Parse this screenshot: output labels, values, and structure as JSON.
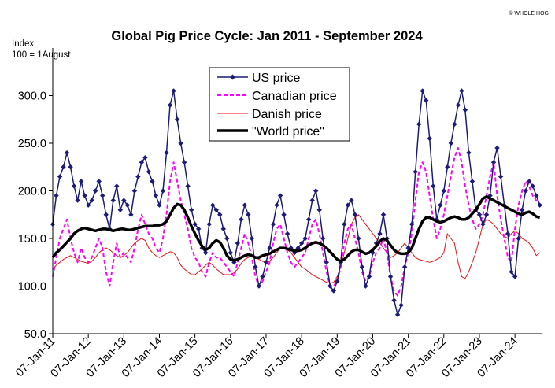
{
  "chart_data": {
    "type": "line",
    "title": "Global Pig Price Cycle: Jan 2011 - September 2024",
    "ylabel_line1": "Index",
    "ylabel_line2": "100 = 1August",
    "copyright": "© WHOLE HOG",
    "ylim": [
      50,
      350
    ],
    "yticks": [
      50,
      100,
      150,
      200,
      250,
      300
    ],
    "ytick_labels": [
      "50.0",
      "100.0",
      "150.0",
      "200.0",
      "250.0",
      "300.0"
    ],
    "xlim": [
      2011.0,
      2024.75
    ],
    "xticks": [
      2011,
      2012,
      2013,
      2014,
      2015,
      2016,
      2017,
      2018,
      2019,
      2020,
      2021,
      2022,
      2023,
      2024
    ],
    "xtick_labels": [
      "07-Jan-11",
      "07-Jan-12",
      "07-Jan-13",
      "07-Jan-14",
      "07-Jan-15",
      "07-Jan-16",
      "07-Jan-17",
      "07-Jan-18",
      "07-Jan-19",
      "07-Jan-20",
      "07-Jan-21",
      "07-Jan-22",
      "07-Jan-23",
      "07-Jan-24"
    ],
    "grid": false,
    "legend_position": "top-center",
    "series": [
      {
        "name": "US price",
        "color": "#1c1c78",
        "style": "solid-diamond",
        "x": [
          2011.0,
          2011.1,
          2011.2,
          2011.3,
          2011.4,
          2011.5,
          2011.6,
          2011.7,
          2011.8,
          2011.9,
          2012.0,
          2012.1,
          2012.2,
          2012.3,
          2012.4,
          2012.5,
          2012.6,
          2012.7,
          2012.8,
          2012.9,
          2013.0,
          2013.1,
          2013.2,
          2013.3,
          2013.4,
          2013.5,
          2013.6,
          2013.7,
          2013.8,
          2013.9,
          2014.0,
          2014.1,
          2014.2,
          2014.3,
          2014.4,
          2014.5,
          2014.6,
          2014.7,
          2014.8,
          2014.9,
          2015.0,
          2015.1,
          2015.2,
          2015.3,
          2015.4,
          2015.5,
          2015.6,
          2015.7,
          2015.8,
          2015.9,
          2016.0,
          2016.1,
          2016.2,
          2016.3,
          2016.4,
          2016.5,
          2016.6,
          2016.7,
          2016.8,
          2016.9,
          2017.0,
          2017.1,
          2017.2,
          2017.3,
          2017.4,
          2017.5,
          2017.6,
          2017.7,
          2017.8,
          2017.9,
          2018.0,
          2018.1,
          2018.2,
          2018.3,
          2018.4,
          2018.5,
          2018.6,
          2018.7,
          2018.8,
          2018.9,
          2019.0,
          2019.1,
          2019.2,
          2019.3,
          2019.4,
          2019.5,
          2019.6,
          2019.7,
          2019.8,
          2019.9,
          2020.0,
          2020.1,
          2020.2,
          2020.3,
          2020.4,
          2020.5,
          2020.6,
          2020.7,
          2020.8,
          2020.9,
          2021.0,
          2021.1,
          2021.2,
          2021.3,
          2021.4,
          2021.5,
          2021.6,
          2021.7,
          2021.8,
          2021.9,
          2022.0,
          2022.1,
          2022.2,
          2022.3,
          2022.4,
          2022.5,
          2022.6,
          2022.7,
          2022.8,
          2022.9,
          2023.0,
          2023.1,
          2023.2,
          2023.3,
          2023.4,
          2023.5,
          2023.6,
          2023.7,
          2023.8,
          2023.9,
          2024.0,
          2024.1,
          2024.2,
          2024.3,
          2024.4,
          2024.5,
          2024.6,
          2024.7
        ],
        "values": [
          165,
          195,
          215,
          225,
          240,
          225,
          205,
          190,
          210,
          195,
          185,
          190,
          200,
          210,
          195,
          175,
          160,
          190,
          205,
          180,
          190,
          185,
          175,
          200,
          215,
          230,
          235,
          220,
          210,
          195,
          185,
          200,
          240,
          290,
          305,
          275,
          250,
          230,
          205,
          180,
          165,
          160,
          140,
          135,
          165,
          185,
          180,
          175,
          160,
          150,
          135,
          125,
          145,
          170,
          185,
          175,
          150,
          120,
          100,
          110,
          125,
          140,
          165,
          185,
          195,
          175,
          155,
          140,
          135,
          140,
          145,
          150,
          170,
          190,
          200,
          180,
          150,
          125,
          100,
          95,
          105,
          125,
          165,
          185,
          190,
          175,
          150,
          120,
          100,
          110,
          135,
          145,
          155,
          175,
          150,
          110,
          85,
          70,
          80,
          120,
          140,
          165,
          220,
          270,
          305,
          295,
          255,
          205,
          170,
          185,
          200,
          225,
          250,
          270,
          290,
          305,
          285,
          240,
          210,
          180,
          175,
          165,
          175,
          195,
          230,
          245,
          215,
          185,
          155,
          115,
          110,
          150,
          180,
          200,
          210,
          205,
          195,
          185
        ]
      },
      {
        "name": "Canadian price",
        "color": "#ff00ff",
        "style": "dashed",
        "x": [
          2011.0,
          2011.1,
          2011.2,
          2011.3,
          2011.4,
          2011.5,
          2011.6,
          2011.7,
          2011.8,
          2011.9,
          2012.0,
          2012.1,
          2012.2,
          2012.3,
          2012.4,
          2012.5,
          2012.6,
          2012.7,
          2012.8,
          2012.9,
          2013.0,
          2013.1,
          2013.2,
          2013.3,
          2013.4,
          2013.5,
          2013.6,
          2013.7,
          2013.8,
          2013.9,
          2014.0,
          2014.1,
          2014.2,
          2014.3,
          2014.4,
          2014.5,
          2014.6,
          2014.7,
          2014.8,
          2014.9,
          2015.0,
          2015.1,
          2015.2,
          2015.3,
          2015.4,
          2015.5,
          2015.6,
          2015.7,
          2015.8,
          2015.9,
          2016.0,
          2016.1,
          2016.2,
          2016.3,
          2016.4,
          2016.5,
          2016.6,
          2016.7,
          2016.8,
          2016.9,
          2017.0,
          2017.1,
          2017.2,
          2017.3,
          2017.4,
          2017.5,
          2017.6,
          2017.7,
          2017.8,
          2017.9,
          2018.0,
          2018.1,
          2018.2,
          2018.3,
          2018.4,
          2018.5,
          2018.6,
          2018.7,
          2018.8,
          2018.9,
          2019.0,
          2019.1,
          2019.2,
          2019.3,
          2019.4,
          2019.5,
          2019.6,
          2019.7,
          2019.8,
          2019.9,
          2020.0,
          2020.1,
          2020.2,
          2020.3,
          2020.4,
          2020.5,
          2020.6,
          2020.7,
          2020.8,
          2020.9,
          2021.0,
          2021.1,
          2021.2,
          2021.3,
          2021.4,
          2021.5,
          2021.6,
          2021.7,
          2021.8,
          2021.9,
          2022.0,
          2022.1,
          2022.2,
          2022.3,
          2022.4,
          2022.5,
          2022.6,
          2022.7,
          2022.8,
          2022.9,
          2023.0,
          2023.1,
          2023.2,
          2023.3,
          2023.4,
          2023.5,
          2023.6,
          2023.7,
          2023.8,
          2023.9,
          2024.0,
          2024.1,
          2024.2,
          2024.3,
          2024.4,
          2024.5,
          2024.6,
          2024.7
        ],
        "values": [
          110,
          130,
          150,
          160,
          170,
          150,
          135,
          125,
          140,
          130,
          125,
          130,
          140,
          150,
          140,
          115,
          100,
          125,
          145,
          130,
          135,
          130,
          125,
          140,
          160,
          175,
          165,
          155,
          150,
          140,
          135,
          150,
          175,
          210,
          230,
          210,
          190,
          175,
          160,
          140,
          130,
          125,
          115,
          110,
          125,
          135,
          130,
          130,
          125,
          120,
          115,
          110,
          125,
          140,
          155,
          145,
          130,
          110,
          100,
          105,
          115,
          125,
          145,
          160,
          165,
          150,
          135,
          125,
          120,
          125,
          130,
          135,
          150,
          165,
          170,
          155,
          135,
          115,
          100,
          100,
          105,
          120,
          145,
          160,
          165,
          150,
          135,
          115,
          105,
          110,
          125,
          135,
          140,
          150,
          135,
          110,
          95,
          90,
          100,
          120,
          135,
          155,
          190,
          220,
          230,
          220,
          195,
          170,
          150,
          160,
          175,
          195,
          215,
          235,
          245,
          230,
          205,
          185,
          170,
          160,
          165,
          175,
          195,
          215,
          230,
          195,
          170,
          150,
          130,
          125,
          160,
          185,
          200,
          210,
          205,
          195,
          190,
          185
        ]
      },
      {
        "name": "Danish price",
        "color": "#ee1111",
        "style": "thin",
        "x": [
          2011.0,
          2011.1,
          2011.2,
          2011.3,
          2011.4,
          2011.5,
          2011.6,
          2011.7,
          2011.8,
          2011.9,
          2012.0,
          2012.1,
          2012.2,
          2012.3,
          2012.4,
          2012.5,
          2012.6,
          2012.7,
          2012.8,
          2012.9,
          2013.0,
          2013.1,
          2013.2,
          2013.3,
          2013.4,
          2013.5,
          2013.6,
          2013.7,
          2013.8,
          2013.9,
          2014.0,
          2014.1,
          2014.2,
          2014.3,
          2014.4,
          2014.5,
          2014.6,
          2014.7,
          2014.8,
          2014.9,
          2015.0,
          2015.1,
          2015.2,
          2015.3,
          2015.4,
          2015.5,
          2015.6,
          2015.7,
          2015.8,
          2015.9,
          2016.0,
          2016.1,
          2016.2,
          2016.3,
          2016.4,
          2016.5,
          2016.6,
          2016.7,
          2016.8,
          2016.9,
          2017.0,
          2017.1,
          2017.2,
          2017.3,
          2017.4,
          2017.5,
          2017.6,
          2017.7,
          2017.8,
          2017.9,
          2018.0,
          2018.1,
          2018.2,
          2018.3,
          2018.4,
          2018.5,
          2018.6,
          2018.7,
          2018.8,
          2018.9,
          2019.0,
          2019.1,
          2019.2,
          2019.3,
          2019.4,
          2019.5,
          2019.6,
          2019.7,
          2019.8,
          2019.9,
          2020.0,
          2020.1,
          2020.2,
          2020.3,
          2020.4,
          2020.5,
          2020.6,
          2020.7,
          2020.8,
          2020.9,
          2021.0,
          2021.1,
          2021.2,
          2021.3,
          2021.4,
          2021.5,
          2021.6,
          2021.7,
          2021.8,
          2021.9,
          2022.0,
          2022.1,
          2022.2,
          2022.3,
          2022.4,
          2022.5,
          2022.6,
          2022.7,
          2022.8,
          2022.9,
          2023.0,
          2023.1,
          2023.2,
          2023.3,
          2023.4,
          2023.5,
          2023.6,
          2023.7,
          2023.8,
          2023.9,
          2024.0,
          2024.1,
          2024.2,
          2024.3,
          2024.4,
          2024.5,
          2024.6,
          2024.7
        ],
        "values": [
          118,
          122,
          125,
          128,
          130,
          132,
          130,
          128,
          126,
          125,
          124,
          126,
          130,
          135,
          138,
          140,
          138,
          135,
          132,
          130,
          132,
          135,
          140,
          145,
          148,
          150,
          148,
          140,
          135,
          132,
          130,
          132,
          134,
          136,
          135,
          130,
          122,
          118,
          115,
          112,
          112,
          115,
          118,
          122,
          125,
          122,
          118,
          115,
          112,
          112,
          112,
          114,
          118,
          124,
          128,
          130,
          132,
          130,
          128,
          126,
          125,
          126,
          130,
          135,
          140,
          140,
          138,
          135,
          130,
          125,
          120,
          118,
          115,
          112,
          110,
          108,
          106,
          104,
          103,
          104,
          110,
          120,
          135,
          150,
          165,
          172,
          175,
          170,
          165,
          160,
          155,
          150,
          145,
          140,
          135,
          130,
          132,
          135,
          140,
          145,
          140,
          135,
          130,
          128,
          127,
          126,
          125,
          126,
          128,
          130,
          135,
          155,
          150,
          145,
          125,
          110,
          108,
          115,
          125,
          135,
          150,
          165,
          170,
          168,
          165,
          160,
          155,
          152,
          150,
          155,
          158,
          155,
          150,
          148,
          145,
          140,
          132,
          135
        ]
      },
      {
        "name": "\"World price\"",
        "color": "#000000",
        "style": "thick",
        "x": [
          2011.0,
          2011.1,
          2011.2,
          2011.3,
          2011.4,
          2011.5,
          2011.6,
          2011.7,
          2011.8,
          2011.9,
          2012.0,
          2012.1,
          2012.2,
          2012.3,
          2012.4,
          2012.5,
          2012.6,
          2012.7,
          2012.8,
          2012.9,
          2013.0,
          2013.1,
          2013.2,
          2013.3,
          2013.4,
          2013.5,
          2013.6,
          2013.7,
          2013.8,
          2013.9,
          2014.0,
          2014.1,
          2014.2,
          2014.3,
          2014.4,
          2014.5,
          2014.6,
          2014.7,
          2014.8,
          2014.9,
          2015.0,
          2015.1,
          2015.2,
          2015.3,
          2015.4,
          2015.5,
          2015.6,
          2015.7,
          2015.8,
          2015.9,
          2016.0,
          2016.1,
          2016.2,
          2016.3,
          2016.4,
          2016.5,
          2016.6,
          2016.7,
          2016.8,
          2016.9,
          2017.0,
          2017.1,
          2017.2,
          2017.3,
          2017.4,
          2017.5,
          2017.6,
          2017.7,
          2017.8,
          2017.9,
          2018.0,
          2018.1,
          2018.2,
          2018.3,
          2018.4,
          2018.5,
          2018.6,
          2018.7,
          2018.8,
          2018.9,
          2019.0,
          2019.1,
          2019.2,
          2019.3,
          2019.4,
          2019.5,
          2019.6,
          2019.7,
          2019.8,
          2019.9,
          2020.0,
          2020.1,
          2020.2,
          2020.3,
          2020.4,
          2020.5,
          2020.6,
          2020.7,
          2020.8,
          2020.9,
          2021.0,
          2021.1,
          2021.2,
          2021.3,
          2021.4,
          2021.5,
          2021.6,
          2021.7,
          2021.8,
          2021.9,
          2022.0,
          2022.1,
          2022.2,
          2022.3,
          2022.4,
          2022.5,
          2022.6,
          2022.7,
          2022.8,
          2022.9,
          2023.0,
          2023.1,
          2023.2,
          2023.3,
          2023.4,
          2023.5,
          2023.6,
          2023.7,
          2023.8,
          2023.9,
          2024.0,
          2024.1,
          2024.2,
          2024.3,
          2024.4,
          2024.5,
          2024.6,
          2024.7
        ],
        "values": [
          130,
          135,
          138,
          142,
          146,
          150,
          155,
          158,
          160,
          161,
          160,
          159,
          158,
          159,
          160,
          160,
          159,
          158,
          159,
          160,
          160,
          159,
          159,
          160,
          161,
          162,
          163,
          163,
          163,
          164,
          164,
          165,
          168,
          175,
          182,
          186,
          185,
          180,
          172,
          163,
          155,
          148,
          142,
          138,
          140,
          145,
          148,
          146,
          140,
          132,
          128,
          127,
          128,
          130,
          132,
          133,
          132,
          130,
          130,
          132,
          133,
          134,
          136,
          138,
          140,
          140,
          139,
          138,
          137,
          137,
          138,
          140,
          143,
          145,
          146,
          145,
          143,
          140,
          136,
          132,
          128,
          126,
          128,
          132,
          136,
          138,
          138,
          136,
          134,
          135,
          138,
          142,
          147,
          150,
          148,
          143,
          138,
          135,
          134,
          134,
          135,
          140,
          150,
          160,
          168,
          172,
          172,
          170,
          168,
          167,
          168,
          170,
          172,
          173,
          172,
          170,
          170,
          172,
          176,
          180,
          186,
          192,
          194,
          192,
          190,
          188,
          186,
          184,
          182,
          180,
          178,
          176,
          175,
          177,
          178,
          176,
          173,
          172
        ]
      }
    ]
  }
}
